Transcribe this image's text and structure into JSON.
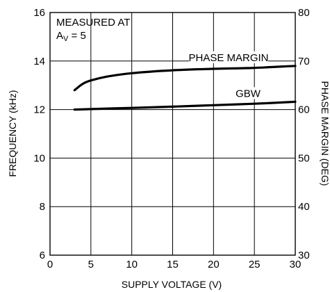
{
  "chart_data": {
    "type": "line",
    "title": "",
    "xlabel": "SUPPLY VOLTAGE (V)",
    "ylabel": "FREQUENCY (kHz)",
    "y2label": "PHASE MARGIN (DEG)",
    "xlim": [
      0,
      30
    ],
    "ylim": [
      6,
      16
    ],
    "y2lim": [
      30,
      80
    ],
    "xticks": [
      "0",
      "5",
      "10",
      "15",
      "20",
      "25",
      "30"
    ],
    "yticks": [
      "6",
      "8",
      "10",
      "12",
      "14",
      "16"
    ],
    "y2ticks": [
      "30",
      "40",
      "50",
      "60",
      "70",
      "80"
    ],
    "grid": true,
    "annotation": {
      "line1": "MEASURED AT",
      "line2_prefix": "A",
      "line2_sub": "V",
      "line2_suffix": " = 5"
    },
    "series": [
      {
        "name": "PHASE MARGIN",
        "axis": "right",
        "x": [
          3,
          4,
          5,
          7,
          10,
          15,
          20,
          25,
          30
        ],
        "values": [
          64,
          65.3,
          66,
          66.8,
          67.5,
          68.1,
          68.4,
          68.6,
          69
        ]
      },
      {
        "name": "GBW",
        "axis": "left",
        "x": [
          3,
          5,
          10,
          15,
          20,
          25,
          30
        ],
        "values": [
          12.0,
          12.02,
          12.07,
          12.12,
          12.18,
          12.24,
          12.32
        ]
      }
    ]
  }
}
